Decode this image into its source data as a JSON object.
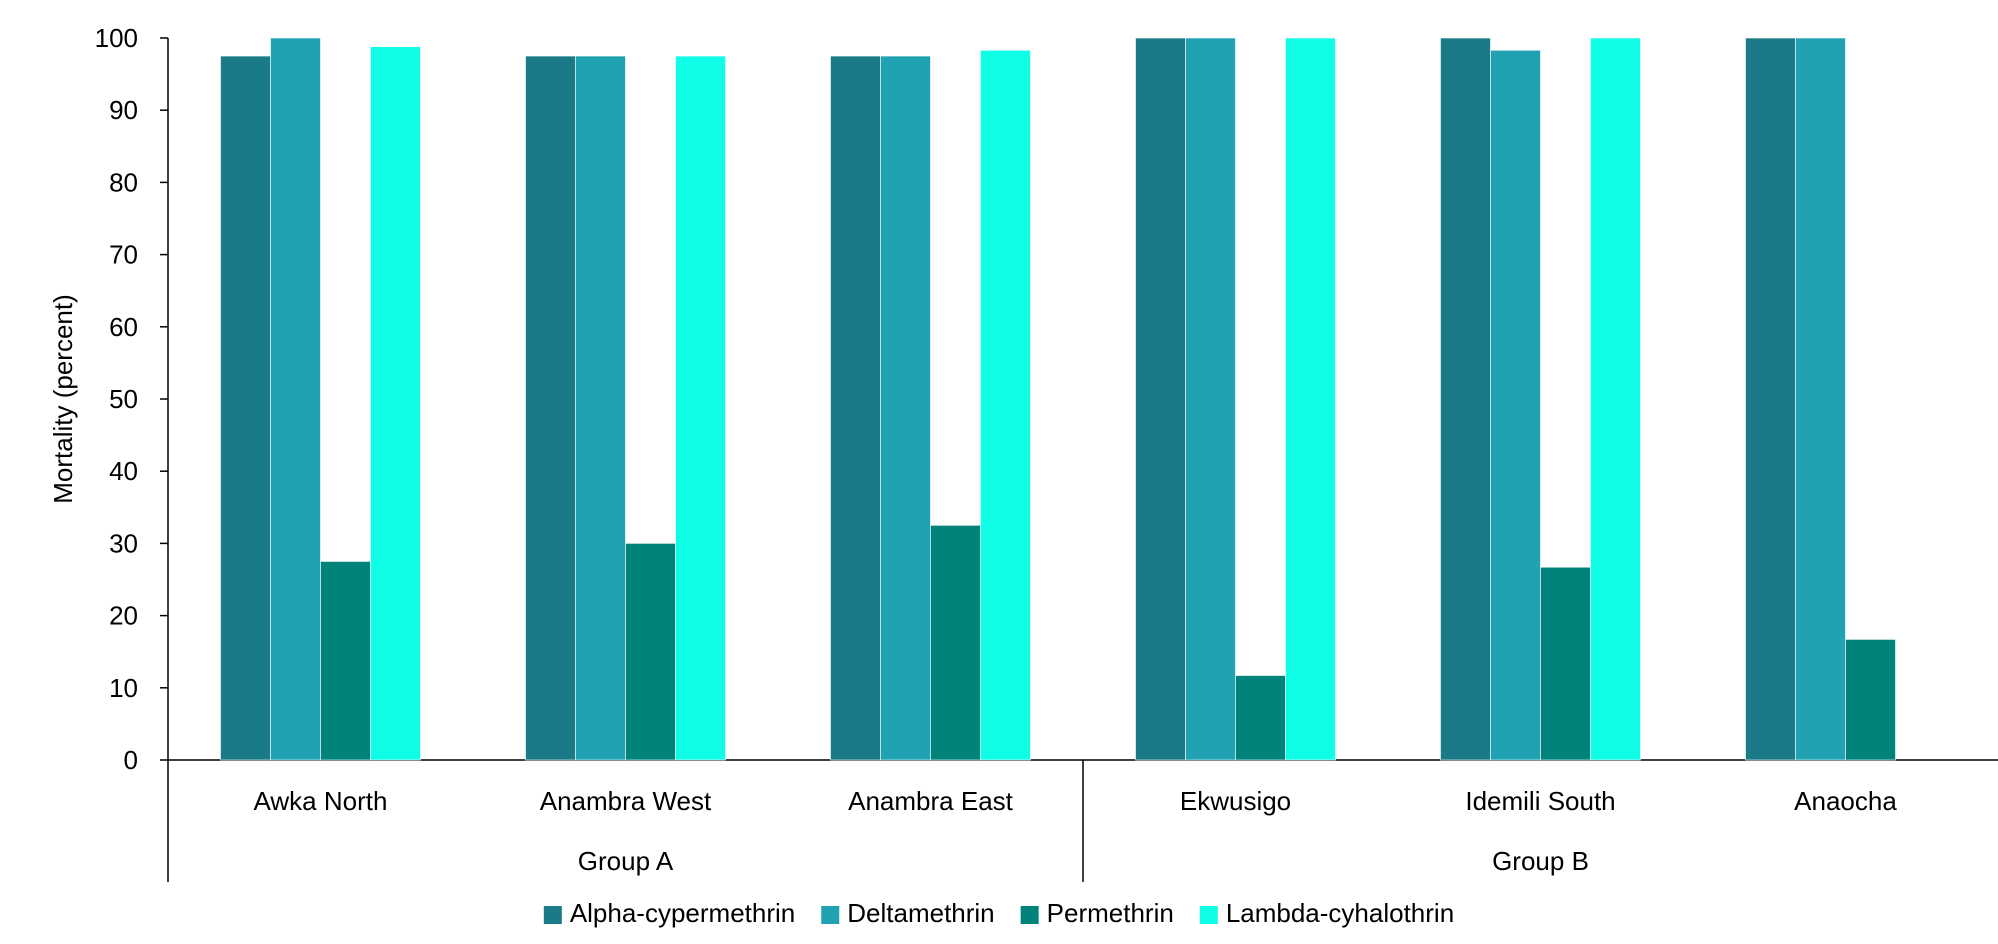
{
  "chart_data": {
    "type": "bar",
    "ylabel": "Mortality (percent)",
    "xlabel": "",
    "ylim": [
      0,
      100
    ],
    "yticks": [
      0,
      10,
      20,
      30,
      40,
      50,
      60,
      70,
      80,
      90,
      100
    ],
    "categories": [
      "Awka North",
      "Anambra West",
      "Anambra East",
      "Ekwusigo",
      "Idemili South",
      "Anaocha"
    ],
    "groups": [
      {
        "label": "Group A",
        "categories": [
          "Awka North",
          "Anambra West",
          "Anambra East"
        ]
      },
      {
        "label": "Group B",
        "categories": [
          "Ekwusigo",
          "Idemili South",
          "Anaocha"
        ]
      }
    ],
    "series": [
      {
        "name": "Alpha-cypermethrin",
        "color": "#1b7a87",
        "values": [
          97.5,
          97.5,
          97.5,
          100,
          100,
          100
        ]
      },
      {
        "name": "Deltamethrin",
        "color": "#20a2b3",
        "values": [
          100,
          97.5,
          97.5,
          100,
          98.3,
          100
        ]
      },
      {
        "name": "Permethrin",
        "color": "#01837b",
        "values": [
          27.5,
          30,
          32.5,
          11.7,
          26.7,
          16.7
        ]
      },
      {
        "name": "Lambda-cyhalothrin",
        "color": "#10fde6",
        "values": [
          98.8,
          97.5,
          98.3,
          100,
          100,
          null
        ]
      }
    ],
    "legend_position": "bottom",
    "grid": false
  }
}
